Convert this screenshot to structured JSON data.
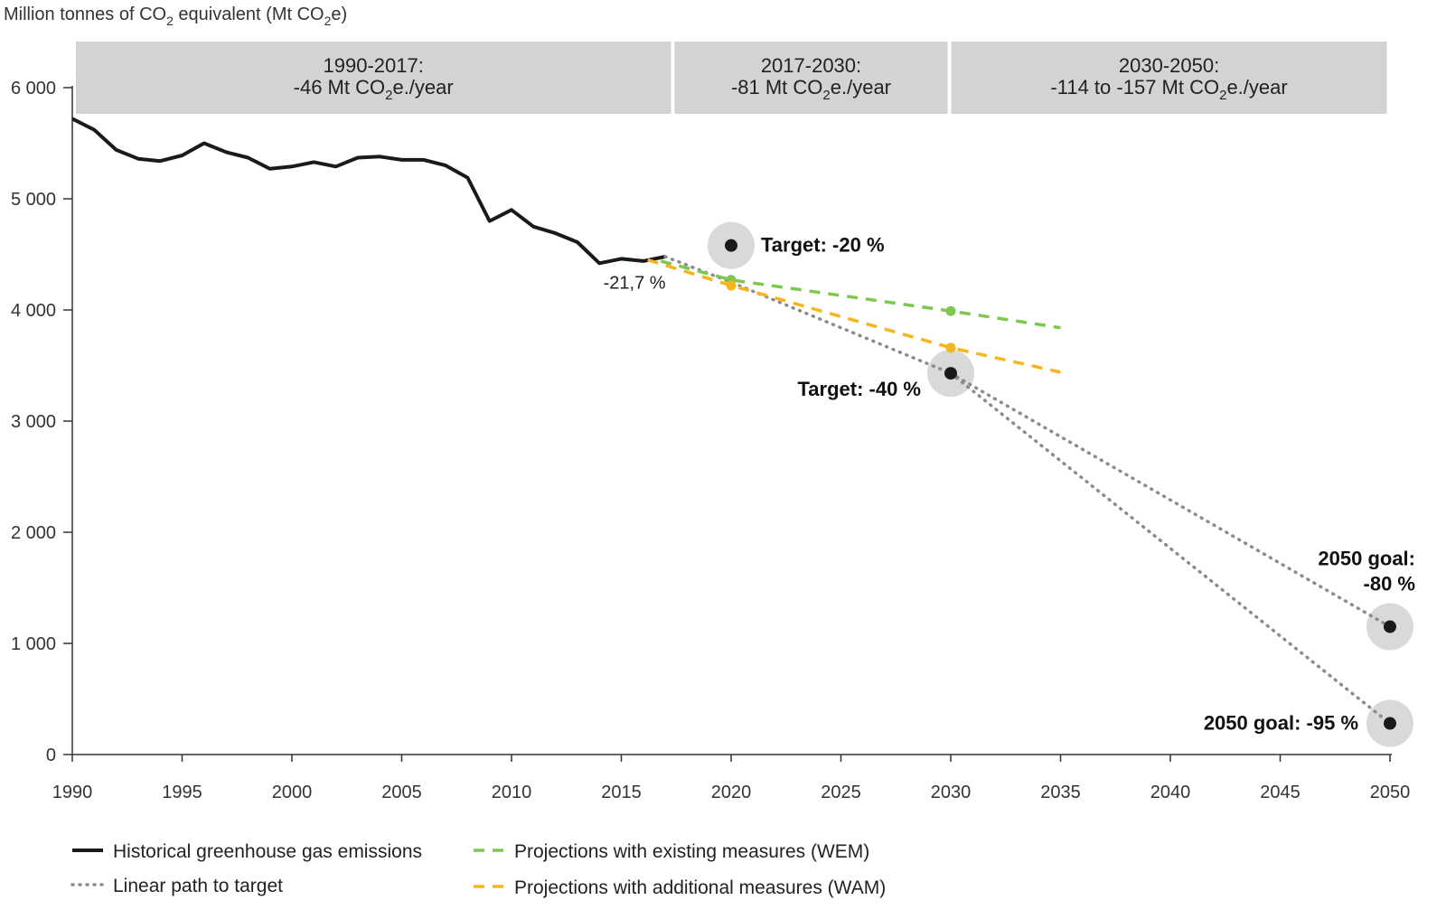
{
  "chart_data": {
    "type": "line",
    "ylabel_parts": [
      "Million tonnes of CO",
      "2",
      " equivalent (Mt CO",
      "2",
      "e)"
    ],
    "xlim": [
      1990,
      2050
    ],
    "ylim": [
      0,
      6000
    ],
    "x_ticks": [
      1990,
      1995,
      2000,
      2005,
      2010,
      2015,
      2020,
      2025,
      2030,
      2035,
      2040,
      2045,
      2050
    ],
    "y_ticks": [
      0,
      1000,
      2000,
      3000,
      4000,
      5000,
      6000
    ],
    "y_tick_labels": [
      "0",
      "1 000",
      "2 000",
      "3 000",
      "4 000",
      "5 000",
      "6 000"
    ],
    "periods": [
      {
        "x_start": 1990,
        "x_end": 2017.3,
        "line1": "1990-2017:",
        "line2_prefix": "-46 Mt CO",
        "line2_sub": "2",
        "line2_suffix": "e./year"
      },
      {
        "x_start": 2017.3,
        "x_end": 2029.9,
        "line1": "2017-2030:",
        "line2_prefix": "-81 Mt CO",
        "line2_sub": "2",
        "line2_suffix": "e./year"
      },
      {
        "x_start": 2029.9,
        "x_end": 2049.9,
        "line1": "2030-2050:",
        "line2_prefix": "-114 to -157 Mt CO",
        "line2_sub": "2",
        "line2_suffix": "e./year"
      }
    ],
    "series": [
      {
        "name": "Historical greenhouse gas emissions",
        "style": "solid",
        "color": "#1a1a1a",
        "x": [
          1990,
          1991,
          1992,
          1993,
          1994,
          1995,
          1996,
          1997,
          1998,
          1999,
          2000,
          2001,
          2002,
          2003,
          2004,
          2005,
          2006,
          2007,
          2008,
          2009,
          2010,
          2011,
          2012,
          2013,
          2014,
          2015,
          2016,
          2017
        ],
        "y": [
          5720,
          5620,
          5440,
          5360,
          5340,
          5390,
          5500,
          5420,
          5370,
          5270,
          5290,
          5330,
          5290,
          5370,
          5380,
          5350,
          5350,
          5300,
          5190,
          4800,
          4900,
          4750,
          4690,
          4610,
          4420,
          4460,
          4440,
          4480
        ]
      },
      {
        "name": "Linear path to target",
        "style": "dotted",
        "color": "#8c8c8c",
        "segments": [
          {
            "x": [
              2017,
              2020,
              2030
            ],
            "y": [
              4480,
              4250,
              3430
            ]
          },
          {
            "x": [
              2030,
              2050
            ],
            "y": [
              3430,
              1150
            ]
          },
          {
            "x": [
              2030,
              2050
            ],
            "y": [
              3430,
              280
            ]
          }
        ]
      },
      {
        "name": "Projections with existing measures (WEM)",
        "style": "dashed",
        "color": "#7ec850",
        "x": [
          2016.8,
          2020,
          2030,
          2035
        ],
        "y": [
          4440,
          4270,
          3990,
          3840
        ],
        "markers_at": [
          2020,
          2030
        ]
      },
      {
        "name": "Projections with additional measures (WAM)",
        "style": "dashed",
        "color": "#f5b51f",
        "x": [
          2016.2,
          2020,
          2030,
          2035
        ],
        "y": [
          4450,
          4220,
          3660,
          3440
        ],
        "markers_at": [
          2020,
          2030
        ]
      }
    ],
    "targets": [
      {
        "x": 2020,
        "y": 4580,
        "label": "Target: -20 %",
        "label_pos": "right"
      },
      {
        "x": 2030,
        "y": 3430,
        "label": "Target: -40 %",
        "label_pos": "left"
      },
      {
        "x": 2050,
        "y": 1150,
        "label_line1": "2050 goal:",
        "label_line2": "-80 %",
        "label_pos": "above-right"
      },
      {
        "x": 2050,
        "y": 280,
        "label": "2050 goal: -95 %",
        "label_pos": "left"
      }
    ],
    "annotations": [
      {
        "x": 2015.6,
        "y": 4250,
        "text": "-21,7 %"
      }
    ],
    "legend": [
      {
        "label": "Historical greenhouse gas emissions",
        "style": "solid",
        "color": "#1a1a1a"
      },
      {
        "label": "Linear path to target",
        "style": "dotted",
        "color": "#8c8c8c"
      },
      {
        "label": "Projections with existing measures (WEM)",
        "style": "dashed",
        "color": "#7ec850"
      },
      {
        "label": "Projections with additional measures (WAM)",
        "style": "dashed",
        "color": "#f5b51f"
      }
    ],
    "legend_placement": "bottom-left",
    "grid": false
  }
}
